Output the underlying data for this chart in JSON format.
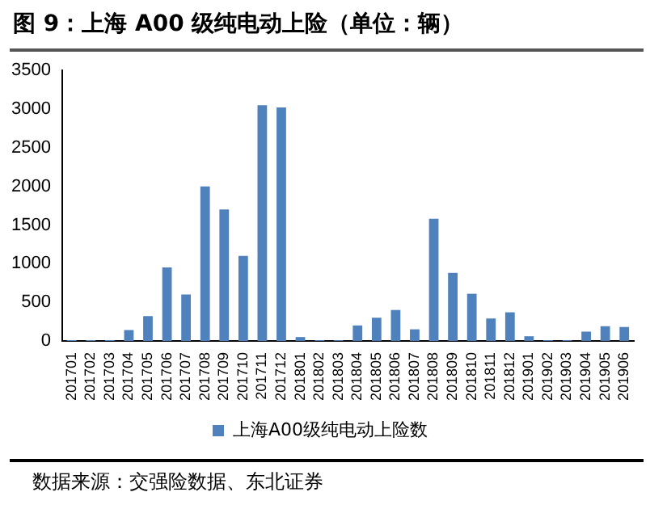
{
  "chart_data": {
    "type": "bar",
    "title": "图 9：上海 A00 级纯电动上险（单位：辆）",
    "categories": [
      "201701",
      "201702",
      "201703",
      "201704",
      "201705",
      "201706",
      "201707",
      "201708",
      "201709",
      "201710",
      "201711",
      "201712",
      "201801",
      "201802",
      "201803",
      "201804",
      "201805",
      "201806",
      "201807",
      "201808",
      "201809",
      "201810",
      "201811",
      "201812",
      "201901",
      "201902",
      "201903",
      "201904",
      "201905",
      "201906"
    ],
    "series": [
      {
        "name": "上海A00级纯电动上险数",
        "color": "#4f81bd",
        "values": [
          10,
          10,
          10,
          140,
          320,
          950,
          600,
          2000,
          1700,
          1100,
          3050,
          3020,
          50,
          10,
          10,
          200,
          300,
          400,
          150,
          1580,
          880,
          610,
          290,
          370,
          60,
          10,
          10,
          120,
          190,
          180
        ]
      }
    ],
    "ylim": [
      0,
      3500
    ],
    "yticks": [
      0,
      500,
      1000,
      1500,
      2000,
      2500,
      3000,
      3500
    ],
    "grid": false,
    "legend": "bottom",
    "annotations": [
      "数据来源：交强险数据、东北证券"
    ]
  }
}
